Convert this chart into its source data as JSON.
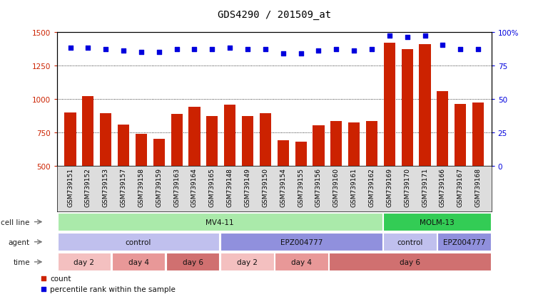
{
  "title": "GDS4290 / 201509_at",
  "samples": [
    "GSM739151",
    "GSM739152",
    "GSM739153",
    "GSM739157",
    "GSM739158",
    "GSM739159",
    "GSM739163",
    "GSM739164",
    "GSM739165",
    "GSM739148",
    "GSM739149",
    "GSM739150",
    "GSM739154",
    "GSM739155",
    "GSM739156",
    "GSM739160",
    "GSM739161",
    "GSM739162",
    "GSM739169",
    "GSM739170",
    "GSM739171",
    "GSM739166",
    "GSM739167",
    "GSM739168"
  ],
  "counts": [
    900,
    1020,
    895,
    810,
    740,
    705,
    890,
    940,
    875,
    955,
    875,
    895,
    690,
    680,
    805,
    835,
    825,
    835,
    1420,
    1370,
    1410,
    1060,
    960,
    975
  ],
  "percentile_ranks": [
    88,
    88,
    87,
    86,
    85,
    85,
    87,
    87,
    87,
    88,
    87,
    87,
    84,
    84,
    86,
    87,
    86,
    87,
    97,
    96,
    97,
    90,
    87,
    87
  ],
  "bar_color": "#cc2200",
  "dot_color": "#0000dd",
  "ylim_left": [
    500,
    1500
  ],
  "ylim_right": [
    0,
    100
  ],
  "yticks_left": [
    500,
    750,
    1000,
    1250,
    1500
  ],
  "yticks_right": [
    0,
    25,
    50,
    75,
    100
  ],
  "grid_vals": [
    750,
    1000,
    1250
  ],
  "cell_line_groups": [
    {
      "label": "MV4-11",
      "start": 0,
      "end": 18,
      "color": "#aaeaaa"
    },
    {
      "label": "MOLM-13",
      "start": 18,
      "end": 24,
      "color": "#33cc55"
    }
  ],
  "agent_groups": [
    {
      "label": "control",
      "start": 0,
      "end": 9,
      "color": "#c0c0ee"
    },
    {
      "label": "EPZ004777",
      "start": 9,
      "end": 18,
      "color": "#9090dd"
    },
    {
      "label": "control",
      "start": 18,
      "end": 21,
      "color": "#c0c0ee"
    },
    {
      "label": "EPZ004777",
      "start": 21,
      "end": 24,
      "color": "#9090dd"
    }
  ],
  "time_groups": [
    {
      "label": "day 2",
      "start": 0,
      "end": 3,
      "color": "#f4c0c0"
    },
    {
      "label": "day 4",
      "start": 3,
      "end": 6,
      "color": "#e89898"
    },
    {
      "label": "day 6",
      "start": 6,
      "end": 9,
      "color": "#d07070"
    },
    {
      "label": "day 2",
      "start": 9,
      "end": 12,
      "color": "#f4c0c0"
    },
    {
      "label": "day 4",
      "start": 12,
      "end": 15,
      "color": "#e89898"
    },
    {
      "label": "day 6",
      "start": 15,
      "end": 24,
      "color": "#d07070"
    }
  ],
  "legend_items": [
    "count",
    "percentile rank within the sample"
  ],
  "legend_colors": [
    "#cc2200",
    "#0000dd"
  ],
  "xtick_bg": "#dddddd"
}
